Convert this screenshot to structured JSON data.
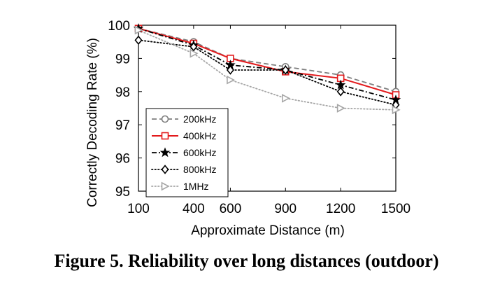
{
  "caption": "Figure 5. Reliability over long distances (outdoor)",
  "chart_data": {
    "type": "line",
    "title": "",
    "xlabel": "Approximate Distance (m)",
    "ylabel": "Correctly Decoding Rate (%)",
    "x": [
      100,
      400,
      600,
      900,
      1200,
      1500
    ],
    "xlim": [
      100,
      1500
    ],
    "ylim": [
      95,
      100
    ],
    "yticks": [
      95,
      96,
      97,
      98,
      99,
      100
    ],
    "grid": false,
    "legend_position": "bottom-left",
    "series": [
      {
        "name": "200kHz",
        "values": [
          99.9,
          99.5,
          99.0,
          98.75,
          98.5,
          98.0
        ],
        "color": "#7f7f7f",
        "dash": "dashed",
        "marker": "circle"
      },
      {
        "name": "400kHz",
        "values": [
          99.9,
          99.45,
          99.0,
          98.6,
          98.4,
          97.9
        ],
        "color": "#e31a1c",
        "dash": "solid",
        "marker": "square"
      },
      {
        "name": "600kHz",
        "values": [
          99.9,
          99.4,
          98.8,
          98.65,
          98.2,
          97.75
        ],
        "color": "#000000",
        "dash": "dashdot",
        "marker": "star"
      },
      {
        "name": "800kHz",
        "values": [
          99.55,
          99.35,
          98.65,
          98.65,
          98.0,
          97.6
        ],
        "color": "#000000",
        "dash": "dotted",
        "marker": "diamond"
      },
      {
        "name": "1MHz",
        "values": [
          99.85,
          99.15,
          98.35,
          97.8,
          97.5,
          97.45
        ],
        "color": "#a6a6a6",
        "dash": "dotted",
        "marker": "triangle-right"
      }
    ]
  }
}
